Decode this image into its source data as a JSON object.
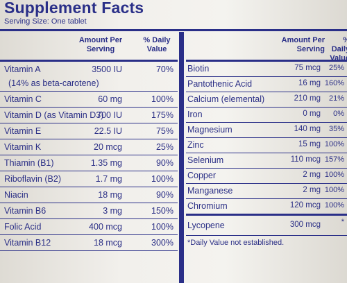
{
  "panel": {
    "title": "Supplement Facts",
    "serving_size": "Serving Size: One tablet"
  },
  "left": {
    "amount_header": "Amount Per Serving",
    "dv_header": "% Daily Value",
    "rows": [
      {
        "name": "Vitamin A",
        "subname": "(14% as beta-carotene)",
        "amount": "3500 IU",
        "dv": "70%"
      },
      {
        "name": "Vitamin C",
        "amount": "60 mg",
        "dv": "100%"
      },
      {
        "name": "Vitamin D (as Vitamin D3)",
        "amount": "700 IU",
        "dv": "175%"
      },
      {
        "name": "Vitamin E",
        "amount": "22.5 IU",
        "dv": "75%"
      },
      {
        "name": "Vitamin K",
        "amount": "20 mcg",
        "dv": "25%"
      },
      {
        "name": "Thiamin (B1)",
        "amount": "1.35 mg",
        "dv": "90%"
      },
      {
        "name": "Riboflavin (B2)",
        "amount": "1.7 mg",
        "dv": "100%"
      },
      {
        "name": "Niacin",
        "amount": "18 mg",
        "dv": "90%"
      },
      {
        "name": "Vitamin B6",
        "amount": "3 mg",
        "dv": "150%"
      },
      {
        "name": "Folic Acid",
        "amount": "400 mcg",
        "dv": "100%"
      },
      {
        "name": "Vitamin B12",
        "amount": "18 mcg",
        "dv": "300%"
      }
    ]
  },
  "right": {
    "amount_header": "Amount Per Serving",
    "dv_header": "% Daily Value",
    "rows": [
      {
        "name": "Biotin",
        "amount": "75 mcg",
        "dv": "25%"
      },
      {
        "name": "Pantothenic Acid",
        "amount": "16 mg",
        "dv": "160%"
      },
      {
        "name": "Calcium (elemental)",
        "amount": "210 mg",
        "dv": "21%"
      },
      {
        "name": "Iron",
        "amount": "0 mg",
        "dv": "0%"
      },
      {
        "name": "Magnesium",
        "amount": "140 mg",
        "dv": "35%"
      },
      {
        "name": "Zinc",
        "amount": "15 mg",
        "dv": "100%"
      },
      {
        "name": "Selenium",
        "amount": "110 mcg",
        "dv": "157%"
      },
      {
        "name": "Copper",
        "amount": "2 mg",
        "dv": "100%"
      },
      {
        "name": "Manganese",
        "amount": "2 mg",
        "dv": "100%"
      },
      {
        "name": "Chromium",
        "amount": "120 mcg",
        "dv": "100%"
      },
      {
        "name": "Lycopene",
        "amount": "300 mcg",
        "dv": "*"
      }
    ],
    "footnote": "*Daily Value not established."
  }
}
